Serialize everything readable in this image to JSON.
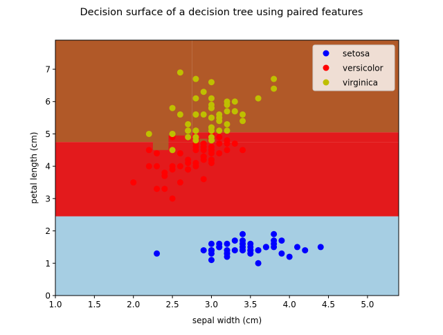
{
  "chart_data": {
    "type": "scatter",
    "title": "Decision surface of a decision tree using paired features",
    "xlabel": "sepal width (cm)",
    "ylabel": "petal length (cm)",
    "xlim": [
      1.0,
      5.4
    ],
    "ylim": [
      0,
      7.9
    ],
    "xticks": [
      "1.0",
      "1.5",
      "2.0",
      "2.5",
      "3.0",
      "3.5",
      "4.0",
      "4.5",
      "5.0"
    ],
    "yticks": [
      "0",
      "1",
      "2",
      "3",
      "4",
      "5",
      "6",
      "7"
    ],
    "legend_position": "top-right",
    "decision_regions": [
      {
        "class": "setosa",
        "color": "#a6cee3",
        "x": [
          1.0,
          5.4
        ],
        "y": [
          0,
          2.45
        ]
      },
      {
        "class": "versicolor",
        "color": "#e31a1c",
        "x": [
          1.0,
          5.4
        ],
        "y": [
          2.45,
          4.75
        ]
      },
      {
        "class": "versicolor",
        "color": "#e31a1c",
        "x": [
          2.75,
          5.4
        ],
        "y": [
          4.75,
          5.05
        ]
      },
      {
        "class": "virginica",
        "color": "#b15928",
        "x": [
          1.0,
          2.75
        ],
        "y": [
          4.75,
          7.9
        ]
      },
      {
        "class": "virginica",
        "color": "#b15928",
        "x": [
          2.75,
          5.4
        ],
        "y": [
          5.05,
          7.9
        ]
      },
      {
        "class": "virginica",
        "color": "#b15928",
        "x": [
          2.25,
          2.45
        ],
        "y": [
          4.5,
          4.75
        ]
      },
      {
        "class": "versicolor",
        "color": "#e31a1c",
        "x": [
          2.45,
          2.75
        ],
        "y": [
          4.75,
          4.95
        ]
      },
      {
        "class": "versicolor",
        "color": "#e31a1c",
        "x": [
          2.8,
          3.05
        ],
        "y": [
          4.75,
          4.95
        ]
      },
      {
        "class": "virginica",
        "color": "#b15928",
        "x": [
          2.85,
          2.95
        ],
        "y": [
          4.75,
          4.85
        ]
      },
      {
        "class": "virginica",
        "color": "#b15928",
        "x": [
          3.0,
          3.05
        ],
        "y": [
          4.75,
          4.85
        ]
      }
    ],
    "series": [
      {
        "name": "setosa",
        "color": "#0000ff",
        "points": [
          [
            3.5,
            1.4
          ],
          [
            3.0,
            1.4
          ],
          [
            3.2,
            1.3
          ],
          [
            3.1,
            1.5
          ],
          [
            3.6,
            1.4
          ],
          [
            3.9,
            1.7
          ],
          [
            3.4,
            1.4
          ],
          [
            3.4,
            1.5
          ],
          [
            2.9,
            1.4
          ],
          [
            3.1,
            1.5
          ],
          [
            3.7,
            1.5
          ],
          [
            3.4,
            1.6
          ],
          [
            3.0,
            1.4
          ],
          [
            3.0,
            1.1
          ],
          [
            4.0,
            1.2
          ],
          [
            4.4,
            1.5
          ],
          [
            3.9,
            1.3
          ],
          [
            3.5,
            1.4
          ],
          [
            3.8,
            1.7
          ],
          [
            3.8,
            1.5
          ],
          [
            3.4,
            1.7
          ],
          [
            3.7,
            1.5
          ],
          [
            3.6,
            1.0
          ],
          [
            3.3,
            1.7
          ],
          [
            3.4,
            1.9
          ],
          [
            3.0,
            1.6
          ],
          [
            3.4,
            1.6
          ],
          [
            3.5,
            1.5
          ],
          [
            3.4,
            1.4
          ],
          [
            3.2,
            1.6
          ],
          [
            3.1,
            1.6
          ],
          [
            3.4,
            1.5
          ],
          [
            4.1,
            1.5
          ],
          [
            4.2,
            1.4
          ],
          [
            3.1,
            1.5
          ],
          [
            3.2,
            1.2
          ],
          [
            3.5,
            1.3
          ],
          [
            3.6,
            1.4
          ],
          [
            3.0,
            1.3
          ],
          [
            3.4,
            1.5
          ],
          [
            3.5,
            1.3
          ],
          [
            2.3,
            1.3
          ],
          [
            3.2,
            1.3
          ],
          [
            3.5,
            1.6
          ],
          [
            3.8,
            1.9
          ],
          [
            3.0,
            1.4
          ],
          [
            3.8,
            1.6
          ],
          [
            3.2,
            1.4
          ],
          [
            3.7,
            1.5
          ],
          [
            3.3,
            1.4
          ]
        ]
      },
      {
        "name": "versicolor",
        "color": "#ff0000",
        "points": [
          [
            3.2,
            4.7
          ],
          [
            3.2,
            4.5
          ],
          [
            3.1,
            4.9
          ],
          [
            2.3,
            4.0
          ],
          [
            2.8,
            4.6
          ],
          [
            2.8,
            4.5
          ],
          [
            3.3,
            4.7
          ],
          [
            2.4,
            3.3
          ],
          [
            2.9,
            4.6
          ],
          [
            2.7,
            3.9
          ],
          [
            2.0,
            3.5
          ],
          [
            3.0,
            4.2
          ],
          [
            2.2,
            4.0
          ],
          [
            2.9,
            4.7
          ],
          [
            2.9,
            3.6
          ],
          [
            3.1,
            4.4
          ],
          [
            3.0,
            4.5
          ],
          [
            2.7,
            4.1
          ],
          [
            2.2,
            4.5
          ],
          [
            2.5,
            3.9
          ],
          [
            3.2,
            4.8
          ],
          [
            2.8,
            4.0
          ],
          [
            2.5,
            4.9
          ],
          [
            2.8,
            4.7
          ],
          [
            2.9,
            4.3
          ],
          [
            3.0,
            4.4
          ],
          [
            2.8,
            4.8
          ],
          [
            3.0,
            5.0
          ],
          [
            2.9,
            4.5
          ],
          [
            2.6,
            3.5
          ],
          [
            2.4,
            3.8
          ],
          [
            2.4,
            3.7
          ],
          [
            2.7,
            3.9
          ],
          [
            2.7,
            5.1
          ],
          [
            3.0,
            4.5
          ],
          [
            3.4,
            4.5
          ],
          [
            3.1,
            4.7
          ],
          [
            2.3,
            4.4
          ],
          [
            3.0,
            4.1
          ],
          [
            2.5,
            4.0
          ],
          [
            2.6,
            4.4
          ],
          [
            3.0,
            4.6
          ],
          [
            2.6,
            4.0
          ],
          [
            2.3,
            3.3
          ],
          [
            2.7,
            4.2
          ],
          [
            3.0,
            4.2
          ],
          [
            2.9,
            4.2
          ],
          [
            2.9,
            4.3
          ],
          [
            2.5,
            3.0
          ],
          [
            2.8,
            4.1
          ]
        ]
      },
      {
        "name": "virginica",
        "color": "#bfbf00",
        "points": [
          [
            3.3,
            6.0
          ],
          [
            2.7,
            5.1
          ],
          [
            3.0,
            5.9
          ],
          [
            2.9,
            5.6
          ],
          [
            3.0,
            5.8
          ],
          [
            3.0,
            6.6
          ],
          [
            2.5,
            4.5
          ],
          [
            2.9,
            6.3
          ],
          [
            2.5,
            5.8
          ],
          [
            3.6,
            6.1
          ],
          [
            3.2,
            5.1
          ],
          [
            2.7,
            5.3
          ],
          [
            3.0,
            5.5
          ],
          [
            2.5,
            5.0
          ],
          [
            2.8,
            5.1
          ],
          [
            3.2,
            5.3
          ],
          [
            3.0,
            5.5
          ],
          [
            3.8,
            6.7
          ],
          [
            2.6,
            6.9
          ],
          [
            2.2,
            5.0
          ],
          [
            3.2,
            5.7
          ],
          [
            2.8,
            4.9
          ],
          [
            2.8,
            6.7
          ],
          [
            2.7,
            4.9
          ],
          [
            3.3,
            5.7
          ],
          [
            3.2,
            6.0
          ],
          [
            2.8,
            4.8
          ],
          [
            3.0,
            4.9
          ],
          [
            2.8,
            5.6
          ],
          [
            3.0,
            5.8
          ],
          [
            2.8,
            6.1
          ],
          [
            3.8,
            6.4
          ],
          [
            2.8,
            5.6
          ],
          [
            2.8,
            5.1
          ],
          [
            2.6,
            5.6
          ],
          [
            3.0,
            6.1
          ],
          [
            3.4,
            5.6
          ],
          [
            3.1,
            5.5
          ],
          [
            3.0,
            4.8
          ],
          [
            3.1,
            5.4
          ],
          [
            3.1,
            5.6
          ],
          [
            3.1,
            5.1
          ],
          [
            2.7,
            5.1
          ],
          [
            3.2,
            5.9
          ],
          [
            3.3,
            5.7
          ],
          [
            3.0,
            5.2
          ],
          [
            2.5,
            5.0
          ],
          [
            3.0,
            5.2
          ],
          [
            3.4,
            5.4
          ],
          [
            3.0,
            5.1
          ]
        ]
      }
    ]
  }
}
